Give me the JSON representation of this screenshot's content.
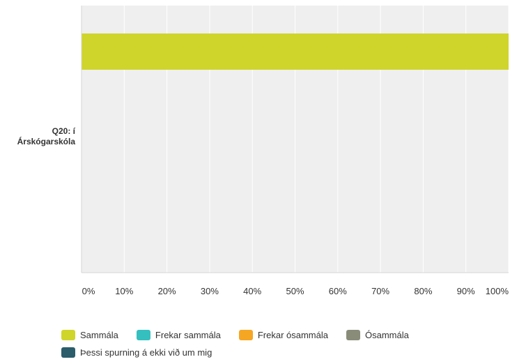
{
  "chart_data": {
    "type": "bar",
    "orientation": "horizontal",
    "stacked": true,
    "categories": [
      "Q20: í Árskógarskóla"
    ],
    "series": [
      {
        "name": "Sammála",
        "values": [
          100
        ],
        "color": "#cfd52a"
      },
      {
        "name": "Frekar sammála",
        "values": [
          0
        ],
        "color": "#35bfbf"
      },
      {
        "name": "Frekar ósammála",
        "values": [
          0
        ],
        "color": "#f5a623"
      },
      {
        "name": "Ósammála",
        "values": [
          0
        ],
        "color": "#8a8c7a"
      },
      {
        "name": "Þessi spurning á ekki við um mig",
        "values": [
          0
        ],
        "color": "#2b5d6b"
      }
    ],
    "xlim": [
      0,
      100
    ],
    "x_ticks": [
      "0%",
      "10%",
      "20%",
      "30%",
      "40%",
      "50%",
      "60%",
      "70%",
      "80%",
      "90%",
      "100%"
    ],
    "grid": true,
    "legend_position": "bottom",
    "plot_background": "#efefef",
    "grid_color": "#ffffff"
  }
}
